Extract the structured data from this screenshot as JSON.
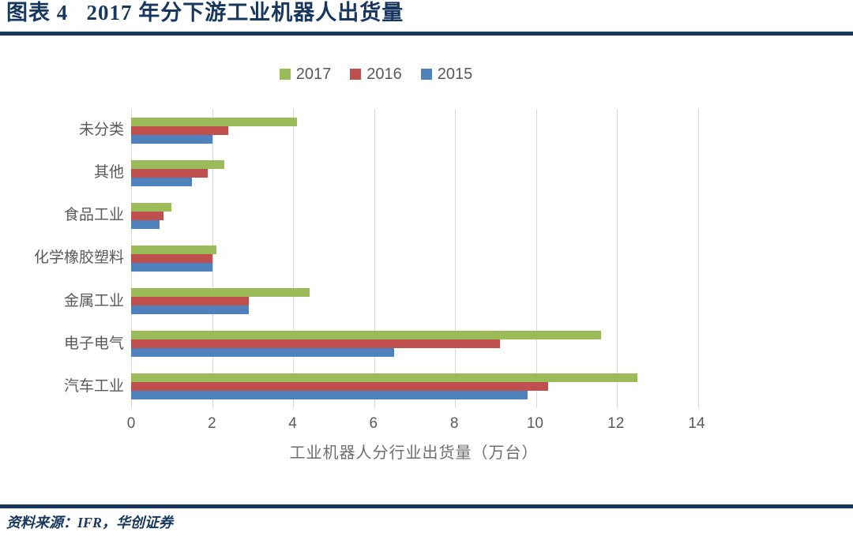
{
  "header": {
    "title": "图表 4   2017 年分下游工业机器人出货量"
  },
  "footer": {
    "source": "资料来源：IFR，华创证券"
  },
  "colors": {
    "navy": "#17375E",
    "axis_text": "#595959",
    "axis_title_text": "#6e6e6e",
    "gridline": "#D9D9D9",
    "series_2017": "#9BBB59",
    "series_2016": "#C0504D",
    "series_2015": "#4F81BD"
  },
  "chart_data": {
    "type": "bar",
    "orientation": "horizontal",
    "title": "2017 年分下游工业机器人出货量",
    "categories": [
      "未分类",
      "其他",
      "食品工业",
      "化学橡胶塑料",
      "金属工业",
      "电子电气",
      "汽车工业"
    ],
    "series": [
      {
        "name": "2017",
        "color": "#9BBB59",
        "values": [
          4.1,
          2.3,
          1.0,
          2.1,
          4.4,
          11.6,
          12.5
        ]
      },
      {
        "name": "2016",
        "color": "#C0504D",
        "values": [
          2.4,
          1.9,
          0.8,
          2.0,
          2.9,
          9.1,
          10.3
        ]
      },
      {
        "name": "2015",
        "color": "#4F81BD",
        "values": [
          2.0,
          1.5,
          0.7,
          2.0,
          2.9,
          6.5,
          9.8
        ]
      }
    ],
    "xlabel": "工业机器人分行业出货量（万台）",
    "ylabel": "",
    "xlim": [
      0,
      15
    ],
    "xticks": [
      0,
      2,
      4,
      6,
      8,
      10,
      12,
      14
    ],
    "grid": "vertical-gridlines-on",
    "legend_position": "top-center"
  }
}
